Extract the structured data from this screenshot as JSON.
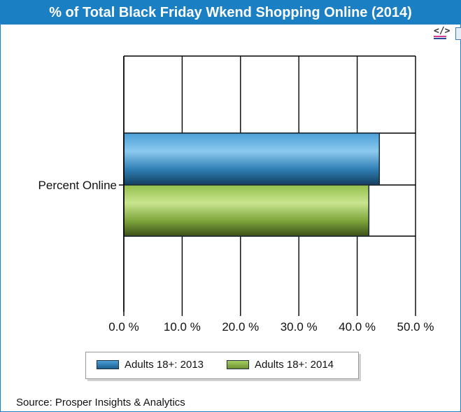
{
  "title": "% of Total Black Friday Wkend Shopping Online (2014)",
  "toolbar": {
    "code_icon": "code-icon",
    "sheet_icon": "spreadsheet-icon"
  },
  "source": "Source: Prosper Insights & Analytics",
  "colors": {
    "header_bg": "#1b7fc4",
    "series_2013": "#3f93cc",
    "series_2014": "#8fb846"
  },
  "chart_data": {
    "type": "bar",
    "orientation": "horizontal",
    "categories": [
      "Percent Online"
    ],
    "series": [
      {
        "name": "Adults 18+: 2013",
        "values": [
          43.8
        ]
      },
      {
        "name": "Adults 18+: 2014",
        "values": [
          42.0
        ]
      }
    ],
    "xlim": [
      0,
      50
    ],
    "x_ticks": [
      "0.0 %",
      "10.0 %",
      "20.0 %",
      "30.0 %",
      "40.0 %",
      "50.0 %"
    ],
    "x_tick_values": [
      0,
      10,
      20,
      30,
      40,
      50
    ],
    "grid": true,
    "legend_position": "bottom"
  }
}
